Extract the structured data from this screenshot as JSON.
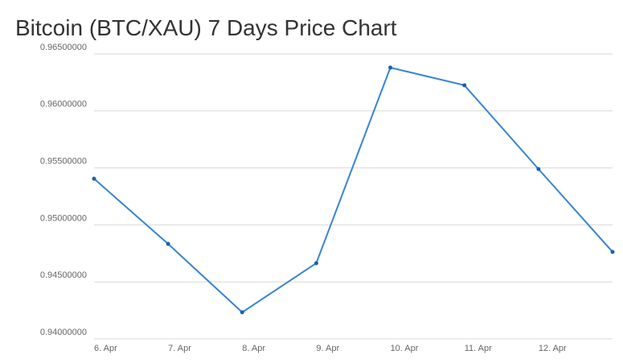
{
  "chart_data": {
    "type": "line",
    "title": "Bitcoin (BTC/XAU) 7 Days Price Chart",
    "categories": [
      "6. Apr",
      "7. Apr",
      "8. Apr",
      "9. Apr",
      "10. Apr",
      "11. Apr",
      "12. Apr",
      null
    ],
    "series": [
      {
        "name": "BTC/XAU",
        "color": "#3585d4",
        "values": [
          0.95405,
          0.94833,
          0.94233,
          0.94664,
          0.9638,
          0.96225,
          0.9549,
          0.94763
        ]
      }
    ],
    "ylim": [
      0.94,
      0.965
    ],
    "yticks": [
      {
        "value": 0.94,
        "label": "0.94000000"
      },
      {
        "value": 0.945,
        "label": "0.94500000"
      },
      {
        "value": 0.95,
        "label": "0.95000000"
      },
      {
        "value": 0.955,
        "label": "0.95500000"
      },
      {
        "value": 0.96,
        "label": "0.96000000"
      },
      {
        "value": 0.965,
        "label": "0.96500000"
      }
    ],
    "grid": true
  }
}
